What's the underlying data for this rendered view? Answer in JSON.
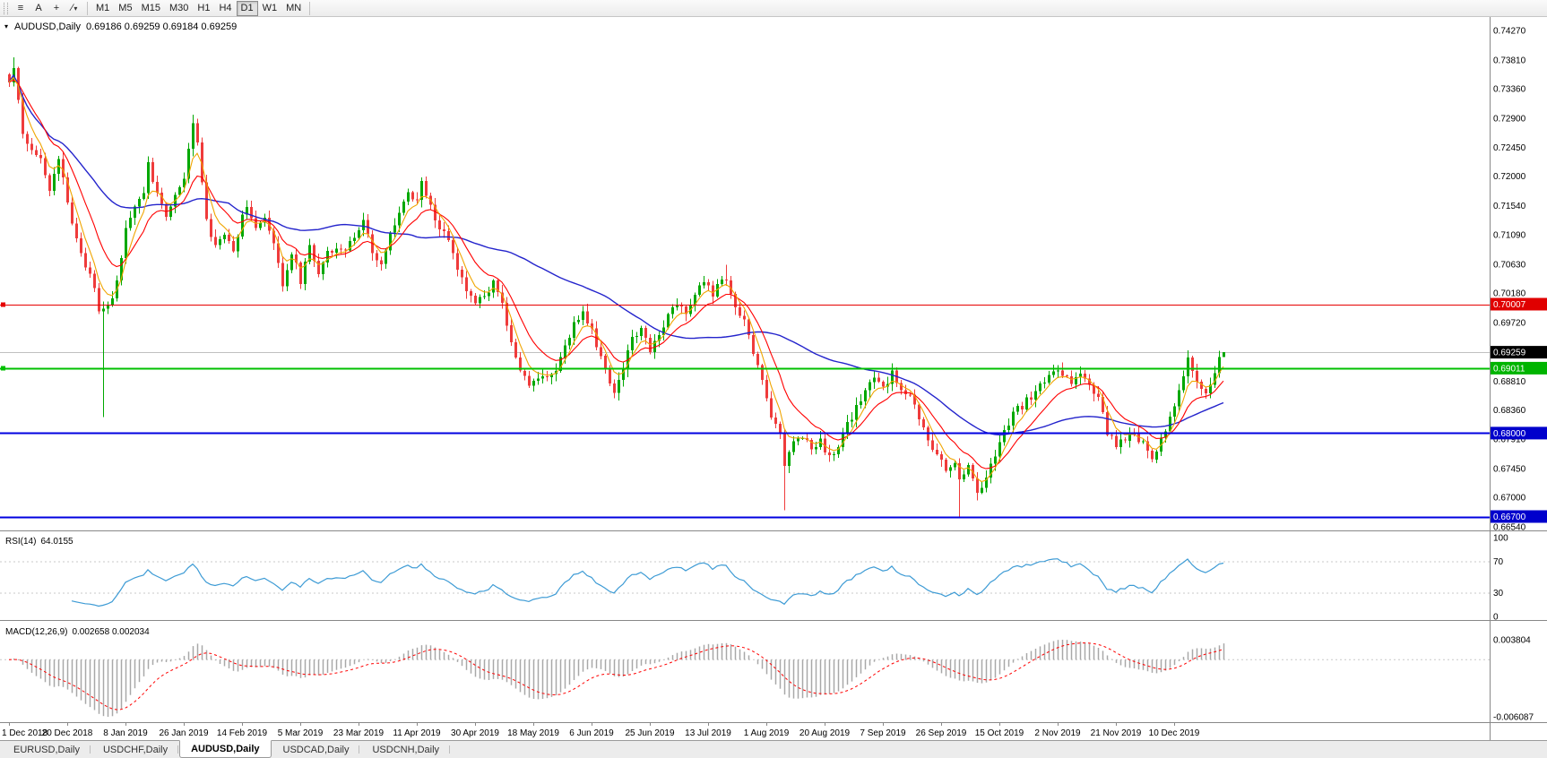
{
  "toolbar": {
    "buttons": [
      {
        "name": "charts-menu",
        "glyph": "≡"
      },
      {
        "name": "cursor",
        "glyph": "A"
      },
      {
        "name": "crosshair",
        "glyph": "+"
      },
      {
        "name": "draw-tools",
        "glyph": "∕",
        "dropdown": "▾"
      }
    ],
    "timeframes": [
      "M1",
      "M5",
      "M15",
      "M30",
      "H1",
      "H4",
      "D1",
      "W1",
      "MN"
    ],
    "active_timeframe": "D1"
  },
  "chart_header": {
    "menu_arrow": "▾",
    "title": "AUDUSD,Daily",
    "ohlc": "0.69186 0.69259 0.69184 0.69259"
  },
  "panels": {
    "rsi": {
      "label": "RSI(14)",
      "value": "64.0155",
      "scale_labels": [
        "100",
        "70",
        "30",
        "0"
      ]
    },
    "macd": {
      "label": "MACD(12,26,9)",
      "values": "0.002658 0.002034",
      "scale_top": "0.003804",
      "scale_bottom": "-0.006087"
    }
  },
  "price_scale": {
    "ticks": [
      "0.74270",
      "0.73810",
      "0.73360",
      "0.72900",
      "0.72450",
      "0.72000",
      "0.71540",
      "0.71090",
      "0.70630",
      "0.70180",
      "0.69720",
      "0.68810",
      "0.68360",
      "0.67910",
      "0.67450",
      "0.67000",
      "0.66540"
    ],
    "badges": [
      {
        "text": "0.70007",
        "price": 0.70007,
        "color": "#e00000",
        "current": false
      },
      {
        "text": "0.69011",
        "price": 0.69011,
        "color": "#00b400",
        "current": false
      },
      {
        "text": "0.68000",
        "price": 0.68,
        "color": "#0000cc",
        "current": false
      },
      {
        "text": "0.66700",
        "price": 0.667,
        "color": "#0000cc",
        "current": false
      },
      {
        "text": "0.69259",
        "price": 0.69259,
        "color": "#000000",
        "current": true
      }
    ]
  },
  "tabs": [
    {
      "label": "EURUSD,Daily",
      "active": false
    },
    {
      "label": "USDCHF,Daily",
      "active": false
    },
    {
      "label": "AUDUSD,Daily",
      "active": true
    },
    {
      "label": "USDCAD,Daily",
      "active": false
    },
    {
      "label": "USDCNH,Daily",
      "active": false
    }
  ],
  "chart_data": {
    "type": "candlestick",
    "symbol": "AUDUSD",
    "timeframe": "Daily",
    "last_ohlc": {
      "open": 0.69186,
      "high": 0.69259,
      "low": 0.69184,
      "close": 0.69259
    },
    "y_range": [
      0.6654,
      0.7427
    ],
    "candle_count": 272,
    "x_axis_dates": [
      "1 Dec 2018",
      "20 Dec 2018",
      "8 Jan 2019",
      "26 Jan 2019",
      "14 Feb 2019",
      "5 Mar 2019",
      "23 Mar 2019",
      "11 Apr 2019",
      "30 Apr 2019",
      "18 May 2019",
      "6 Jun 2019",
      "25 Jun 2019",
      "13 Jul 2019",
      "1 Aug 2019",
      "20 Aug 2019",
      "7 Sep 2019",
      "26 Sep 2019",
      "15 Oct 2019",
      "2 Nov 2019",
      "21 Nov 2019",
      "10 Dec 2019"
    ],
    "price_path_anchors": [
      [
        0,
        0.7345
      ],
      [
        1,
        0.7372
      ],
      [
        3,
        0.7268
      ],
      [
        5,
        0.7242
      ],
      [
        7,
        0.7232
      ],
      [
        9,
        0.7178
      ],
      [
        11,
        0.7228
      ],
      [
        13,
        0.7158
      ],
      [
        15,
        0.7105
      ],
      [
        17,
        0.7058
      ],
      [
        19,
        0.7028
      ],
      [
        20,
        0.699
      ],
      [
        21,
        0.6998
      ],
      [
        23,
        0.7012
      ],
      [
        25,
        0.7068
      ],
      [
        26,
        0.7122
      ],
      [
        28,
        0.7148
      ],
      [
        30,
        0.7178
      ],
      [
        31,
        0.7218
      ],
      [
        33,
        0.7172
      ],
      [
        35,
        0.7138
      ],
      [
        37,
        0.7172
      ],
      [
        39,
        0.7192
      ],
      [
        41,
        0.7288
      ],
      [
        42,
        0.7252
      ],
      [
        44,
        0.7128
      ],
      [
        46,
        0.7088
      ],
      [
        48,
        0.7112
      ],
      [
        50,
        0.7082
      ],
      [
        52,
        0.7138
      ],
      [
        53,
        0.7158
      ],
      [
        55,
        0.7118
      ],
      [
        57,
        0.7132
      ],
      [
        59,
        0.7092
      ],
      [
        61,
        0.7032
      ],
      [
        63,
        0.7082
      ],
      [
        65,
        0.7038
      ],
      [
        67,
        0.7088
      ],
      [
        69,
        0.7052
      ],
      [
        71,
        0.7082
      ],
      [
        73,
        0.7092
      ],
      [
        75,
        0.7082
      ],
      [
        77,
        0.7108
      ],
      [
        79,
        0.7132
      ],
      [
        81,
        0.7078
      ],
      [
        83,
        0.7058
      ],
      [
        85,
        0.7112
      ],
      [
        87,
        0.7142
      ],
      [
        89,
        0.7172
      ],
      [
        91,
        0.7162
      ],
      [
        92,
        0.7188
      ],
      [
        94,
        0.7152
      ],
      [
        96,
        0.7118
      ],
      [
        98,
        0.7102
      ],
      [
        100,
        0.7058
      ],
      [
        102,
        0.7018
      ],
      [
        104,
        0.7004
      ],
      [
        106,
        0.7014
      ],
      [
        108,
        0.7032
      ],
      [
        110,
        0.7004
      ],
      [
        112,
        0.6938
      ],
      [
        114,
        0.6898
      ],
      [
        116,
        0.6873
      ],
      [
        118,
        0.6884
      ],
      [
        120,
        0.6888
      ],
      [
        122,
        0.6898
      ],
      [
        124,
        0.6932
      ],
      [
        126,
        0.6972
      ],
      [
        128,
        0.6988
      ],
      [
        130,
        0.6958
      ],
      [
        132,
        0.6918
      ],
      [
        134,
        0.6878
      ],
      [
        135,
        0.6863
      ],
      [
        137,
        0.6903
      ],
      [
        139,
        0.6948
      ],
      [
        141,
        0.6963
      ],
      [
        143,
        0.6928
      ],
      [
        145,
        0.6958
      ],
      [
        147,
        0.6983
      ],
      [
        149,
        0.7003
      ],
      [
        151,
        0.6988
      ],
      [
        153,
        0.7018
      ],
      [
        155,
        0.7033
      ],
      [
        157,
        0.7018
      ],
      [
        159,
        0.7038
      ],
      [
        160,
        0.7032
      ],
      [
        162,
        0.6998
      ],
      [
        164,
        0.6972
      ],
      [
        166,
        0.6928
      ],
      [
        168,
        0.6878
      ],
      [
        170,
        0.6828
      ],
      [
        172,
        0.6798
      ],
      [
        173,
        0.6752
      ],
      [
        175,
        0.6788
      ],
      [
        177,
        0.6798
      ],
      [
        179,
        0.6772
      ],
      [
        181,
        0.6788
      ],
      [
        183,
        0.6762
      ],
      [
        185,
        0.6778
      ],
      [
        187,
        0.6812
      ],
      [
        189,
        0.6838
      ],
      [
        191,
        0.6868
      ],
      [
        193,
        0.6888
      ],
      [
        195,
        0.6868
      ],
      [
        197,
        0.6892
      ],
      [
        199,
        0.6872
      ],
      [
        201,
        0.6858
      ],
      [
        203,
        0.6822
      ],
      [
        205,
        0.6788
      ],
      [
        207,
        0.6768
      ],
      [
        209,
        0.6742
      ],
      [
        211,
        0.6758
      ],
      [
        212,
        0.6728
      ],
      [
        214,
        0.6748
      ],
      [
        216,
        0.6708
      ],
      [
        218,
        0.6732
      ],
      [
        220,
        0.6768
      ],
      [
        222,
        0.6802
      ],
      [
        224,
        0.6832
      ],
      [
        226,
        0.6842
      ],
      [
        228,
        0.6858
      ],
      [
        230,
        0.6872
      ],
      [
        232,
        0.6892
      ],
      [
        234,
        0.6902
      ],
      [
        235,
        0.6893
      ],
      [
        237,
        0.6878
      ],
      [
        239,
        0.6898
      ],
      [
        241,
        0.6872
      ],
      [
        243,
        0.6852
      ],
      [
        245,
        0.6802
      ],
      [
        247,
        0.6782
      ],
      [
        249,
        0.6788
      ],
      [
        251,
        0.6798
      ],
      [
        253,
        0.6782
      ],
      [
        255,
        0.6758
      ],
      [
        257,
        0.6788
      ],
      [
        259,
        0.6822
      ],
      [
        260,
        0.6838
      ],
      [
        262,
        0.6892
      ],
      [
        263,
        0.6918
      ],
      [
        265,
        0.6878
      ],
      [
        267,
        0.6862
      ],
      [
        269,
        0.6898
      ],
      [
        270,
        0.69186
      ],
      [
        271,
        0.69259
      ]
    ],
    "special_wicks": [
      [
        1,
        "h",
        0.7385
      ],
      [
        21,
        "l",
        0.6825
      ],
      [
        41,
        "h",
        0.7296
      ],
      [
        92,
        "h",
        0.7198
      ],
      [
        160,
        "h",
        0.7062
      ],
      [
        173,
        "l",
        0.668
      ],
      [
        212,
        "l",
        0.667
      ],
      [
        216,
        "l",
        0.6695
      ]
    ],
    "horizontal_lines": [
      {
        "price": 0.70007,
        "color": "#e60000",
        "width": 1,
        "marker": true
      },
      {
        "price": 0.69011,
        "color": "#00c000",
        "width": 2,
        "marker": true
      },
      {
        "price": 0.68,
        "color": "#0000e0",
        "width": 2,
        "marker": false
      },
      {
        "price": 0.667,
        "color": "#0000e0",
        "width": 2,
        "marker": false
      }
    ],
    "bid_line_price": 0.69259,
    "overlays": [
      {
        "name": "fast-ma",
        "type": "EMA",
        "period": 5,
        "color": "#f0a500"
      },
      {
        "name": "mid-ma",
        "type": "EMA",
        "period": 12,
        "color": "#ff0000"
      },
      {
        "name": "slow-ma",
        "type": "SMA",
        "period": 50,
        "color": "#2424cc"
      }
    ],
    "indicators": [
      {
        "name": "RSI",
        "params": "14",
        "last_value": 64.0155,
        "levels": [
          100,
          70,
          30,
          0
        ]
      },
      {
        "name": "MACD",
        "params": "12,26,9",
        "last_values": [
          0.002658,
          0.002034
        ],
        "scale": [
          -0.006087,
          0.003804
        ]
      }
    ],
    "colors": {
      "up": "#00a800",
      "down": "#ef3b3b",
      "ma_fast": "#f0a500",
      "ma_mid": "#ff0000",
      "ma_slow": "#2424cc",
      "rsi": "#3d9bd5",
      "macd_hist": "#a8a8a8",
      "macd_signal": "#ff0000",
      "bid_line": "#c0c0c0"
    }
  }
}
